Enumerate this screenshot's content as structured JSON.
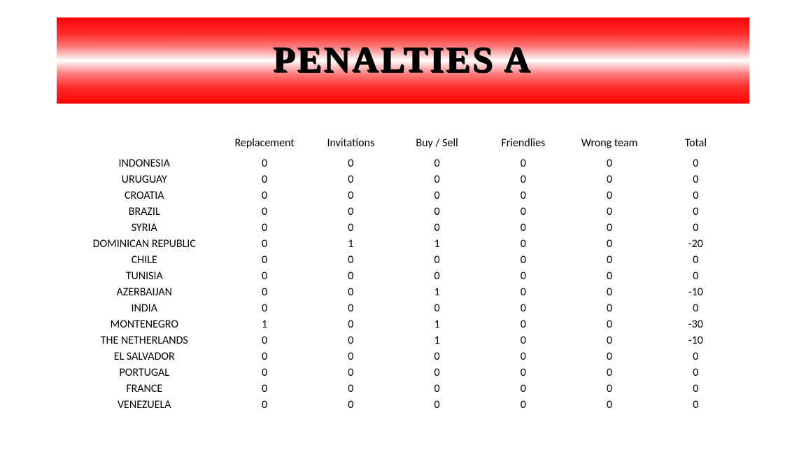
{
  "banner": {
    "title": "PENALTIES A",
    "gradient_colors": [
      "#ff0000",
      "#ffffff",
      "#ff0000"
    ],
    "title_color": "#000000",
    "title_fontsize": 52
  },
  "table": {
    "columns": [
      "Replacement",
      "Invitations",
      "Buy / Sell",
      "Friendlies",
      "Wrong team",
      "Total"
    ],
    "rows": [
      {
        "country": "INDONESIA",
        "values": [
          0,
          0,
          0,
          0,
          0,
          0
        ]
      },
      {
        "country": "URUGUAY",
        "values": [
          0,
          0,
          0,
          0,
          0,
          0
        ]
      },
      {
        "country": "CROATIA",
        "values": [
          0,
          0,
          0,
          0,
          0,
          0
        ]
      },
      {
        "country": "BRAZIL",
        "values": [
          0,
          0,
          0,
          0,
          0,
          0
        ]
      },
      {
        "country": "SYRIA",
        "values": [
          0,
          0,
          0,
          0,
          0,
          0
        ]
      },
      {
        "country": "DOMINICAN REPUBLIC",
        "values": [
          0,
          1,
          1,
          0,
          0,
          -20
        ]
      },
      {
        "country": "CHILE",
        "values": [
          0,
          0,
          0,
          0,
          0,
          0
        ]
      },
      {
        "country": "TUNISIA",
        "values": [
          0,
          0,
          0,
          0,
          0,
          0
        ]
      },
      {
        "country": "AZERBAIJAN",
        "values": [
          0,
          0,
          1,
          0,
          0,
          -10
        ]
      },
      {
        "country": "INDIA",
        "values": [
          0,
          0,
          0,
          0,
          0,
          0
        ]
      },
      {
        "country": "MONTENEGRO",
        "values": [
          1,
          0,
          1,
          0,
          0,
          -30
        ]
      },
      {
        "country": "THE NETHERLANDS",
        "values": [
          0,
          0,
          1,
          0,
          0,
          -10
        ]
      },
      {
        "country": "EL SALVADOR",
        "values": [
          0,
          0,
          0,
          0,
          0,
          0
        ]
      },
      {
        "country": "PORTUGAL",
        "values": [
          0,
          0,
          0,
          0,
          0,
          0
        ]
      },
      {
        "country": "FRANCE",
        "values": [
          0,
          0,
          0,
          0,
          0,
          0
        ]
      },
      {
        "country": "VENEZUELA",
        "values": [
          0,
          0,
          0,
          0,
          0,
          0
        ]
      }
    ],
    "text_color": "#000000",
    "fontsize": 16,
    "background_color": "#ffffff"
  }
}
